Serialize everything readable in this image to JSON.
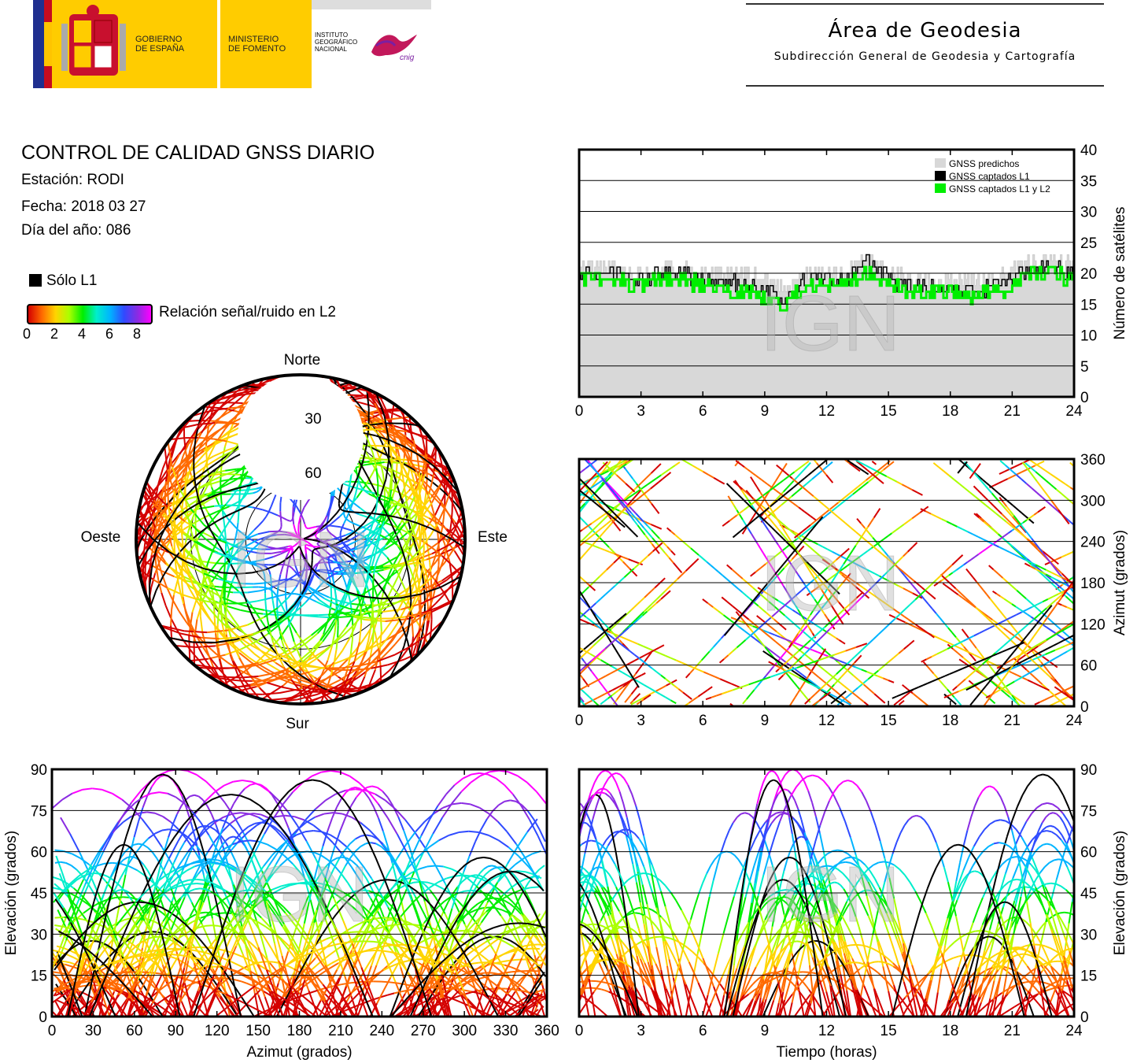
{
  "header": {
    "gobierno": "GOBIERNO\nDE ESPAÑA",
    "ministerio": "MINISTERIO\nDE FOMENTO",
    "instituto": "INSTITUTO\nGEOGRÁFICO\nNACIONAL",
    "cnig": "cnig",
    "area_title": "Área de Geodesia",
    "area_subtitle": "Subdirección General de Geodesia y Cartografía"
  },
  "info": {
    "title": "CONTROL DE CALIDAD GNSS DIARIO",
    "station": "Estación: RODI",
    "date": "Fecha: 2018 03 27",
    "doy": "Día del año: 086",
    "l1_only": "Sólo L1",
    "snr_label": "Relación señal/ruido en L2",
    "snr_ticks": [
      "0",
      "2",
      "4",
      "6",
      "8"
    ]
  },
  "colors": {
    "snr_scale": [
      "#d40000",
      "#ff6a00",
      "#ffd400",
      "#aaff00",
      "#00ee00",
      "#00eecc",
      "#00b4ff",
      "#2f4bff",
      "#8a2be2",
      "#ff00ff"
    ],
    "predicted": "#d8d8d8",
    "l1": "#000000",
    "l1l2": "#00ee00",
    "watermark": "IGN"
  },
  "chart_data": [
    {
      "type": "line",
      "name": "satellites",
      "xlabel": "",
      "ylabel": "Número de satélites",
      "xlim": [
        0,
        24
      ],
      "ylim": [
        0,
        40
      ],
      "xticks": [
        "0",
        "3",
        "6",
        "9",
        "12",
        "15",
        "18",
        "21",
        "24"
      ],
      "yticks": [
        "0",
        "5",
        "10",
        "15",
        "20",
        "25",
        "30",
        "35",
        "40"
      ],
      "legend": [
        "GNSS predichos",
        "GNSS captados L1",
        "GNSS captados L1 y L2"
      ],
      "legend_position": "top-right",
      "grid": true,
      "x": [
        0,
        1,
        2,
        3,
        4,
        5,
        6,
        7,
        8,
        9,
        10,
        11,
        12,
        13,
        14,
        15,
        16,
        17,
        18,
        19,
        20,
        21,
        22,
        23,
        24
      ],
      "series": [
        {
          "name": "GNSS predichos",
          "values": [
            21,
            21,
            21,
            20,
            21,
            21,
            20,
            20,
            20,
            19,
            18,
            20,
            20,
            20,
            23,
            20,
            19,
            19,
            19,
            19,
            19,
            20,
            22,
            22,
            21
          ]
        },
        {
          "name": "GNSS captados L1",
          "values": [
            20,
            20,
            20,
            19,
            20,
            20,
            19,
            19,
            18,
            17,
            16,
            19,
            19,
            19,
            22,
            19,
            18,
            18,
            18,
            17,
            18,
            19,
            21,
            21,
            20
          ]
        },
        {
          "name": "GNSS captados L1 y L2",
          "values": [
            19,
            19,
            19,
            18,
            19,
            19,
            18,
            17,
            17,
            16,
            15,
            18,
            18,
            18,
            20,
            18,
            17,
            17,
            17,
            16,
            17,
            18,
            20,
            20,
            19
          ]
        }
      ]
    },
    {
      "type": "scatter",
      "name": "skyplot",
      "labels": [
        "Norte",
        "Sur",
        "Este",
        "Oeste",
        "30",
        "60"
      ]
    },
    {
      "type": "scatter",
      "name": "azimuth-vs-time",
      "xlabel": "",
      "ylabel": "Azimut (grados)",
      "xlim": [
        0,
        24
      ],
      "ylim": [
        0,
        360
      ],
      "xticks": [
        "0",
        "3",
        "6",
        "9",
        "12",
        "15",
        "18",
        "21",
        "24"
      ],
      "yticks": [
        "0",
        "60",
        "120",
        "180",
        "240",
        "300",
        "360"
      ]
    },
    {
      "type": "scatter",
      "name": "elevation-vs-azimuth",
      "xlabel": "Azimut (grados)",
      "ylabel": "Elevación (grados)",
      "xlim": [
        0,
        360
      ],
      "ylim": [
        0,
        90
      ],
      "xticks": [
        "0",
        "30",
        "60",
        "90",
        "120",
        "150",
        "180",
        "210",
        "240",
        "270",
        "300",
        "330",
        "360"
      ],
      "yticks": [
        "0",
        "15",
        "30",
        "45",
        "60",
        "75",
        "90"
      ]
    },
    {
      "type": "scatter",
      "name": "elevation-vs-time",
      "xlabel": "Tiempo (horas)",
      "ylabel": "Elevación (grados)",
      "xlim": [
        0,
        24
      ],
      "ylim": [
        0,
        90
      ],
      "xticks": [
        "0",
        "3",
        "6",
        "9",
        "12",
        "15",
        "18",
        "21",
        "24"
      ],
      "yticks": [
        "0",
        "15",
        "30",
        "45",
        "60",
        "75",
        "90"
      ]
    }
  ]
}
